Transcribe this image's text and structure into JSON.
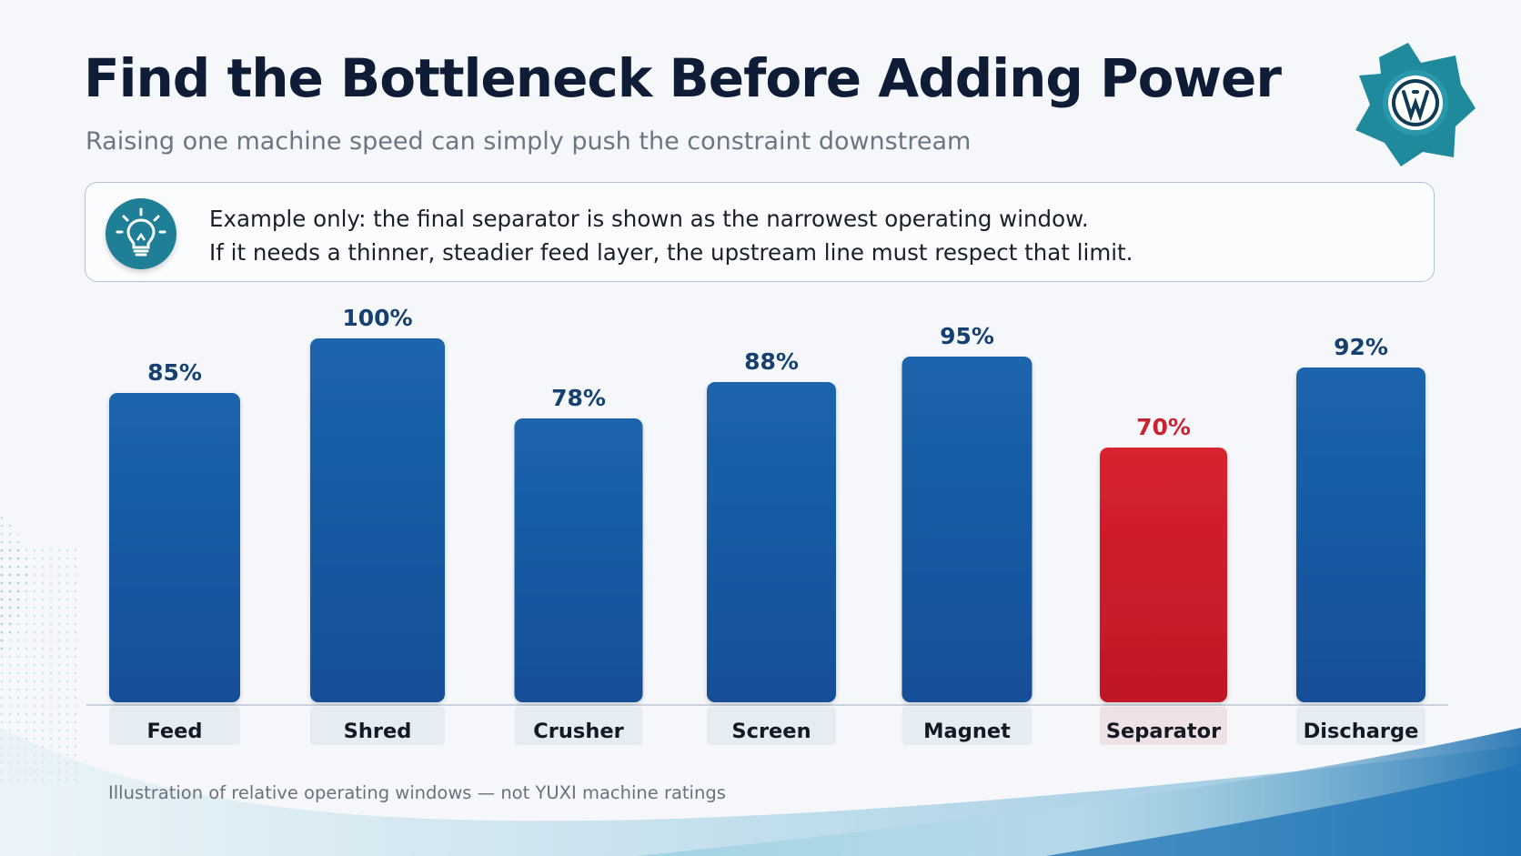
{
  "slide": {
    "title": "Find the Bottleneck Before Adding Power",
    "subtitle": "Raising one machine speed can simply push the constraint downstream",
    "logo_icon": "gear-logo-icon",
    "callout": {
      "icon": "lightbulb-icon",
      "line1": "Example only: the final separator is shown as the narrowest operating window.",
      "line2": "If it needs a thinner, steadier feed layer, the upstream line must respect that limit."
    },
    "note": "Illustration of relative operating windows — not YUXI machine ratings"
  },
  "colors": {
    "bar": "#1a5da6",
    "bar_highlight": "#d21f2d",
    "label": "#16406f",
    "label_highlight": "#cc2230",
    "axis": "#c9d2dd"
  },
  "chart_data": {
    "type": "bar",
    "categories": [
      "Feed",
      "Shred",
      "Crusher",
      "Screen",
      "Magnet",
      "Separator",
      "Discharge"
    ],
    "values": [
      85,
      100,
      78,
      88,
      95,
      70,
      92
    ],
    "data_labels": [
      "85%",
      "100%",
      "78%",
      "88%",
      "95%",
      "70%",
      "92%"
    ],
    "highlight": "Separator",
    "unit": "%",
    "ylim": [
      0,
      100
    ],
    "grid": false,
    "legend": "none",
    "title": "",
    "xlabel": "",
    "ylabel": ""
  }
}
